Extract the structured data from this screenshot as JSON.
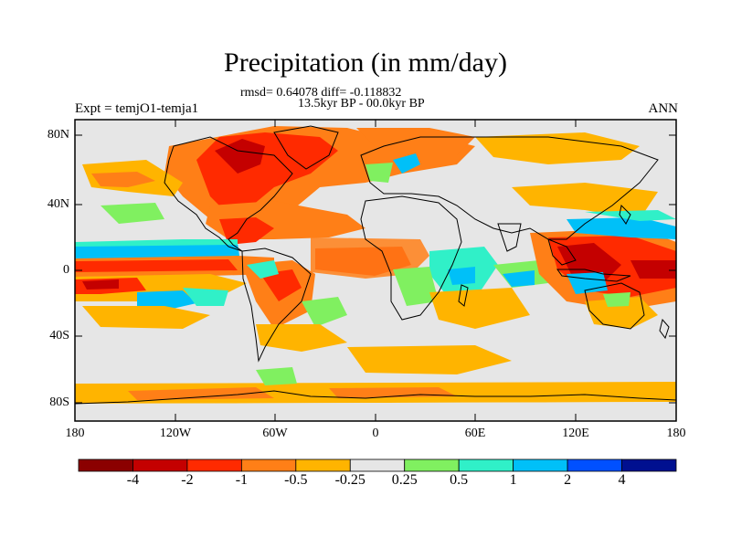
{
  "title": "Precipitation (in mm/day)",
  "stats_line": "rmsd= 0.64078 diff= -0.118832",
  "period_line": "13.5kyr BP - 00.0kyr BP",
  "experiment_label": "Expt = temjO1-temja1",
  "season_label": "ANN",
  "map": {
    "variable": "precipitation difference",
    "units": "mm/day",
    "lat_labels": [
      "80N",
      "40N",
      "0",
      "40S",
      "80S"
    ],
    "lon_labels": [
      "180",
      "120W",
      "60W",
      "0",
      "60E",
      "120E",
      "180"
    ],
    "background_color": "#e6e6e6",
    "coastline_color": "#000000"
  },
  "colorbar": {
    "colors": [
      "#8b0000",
      "#c40000",
      "#ff2a00",
      "#ff7f17",
      "#ffb400",
      "#e6e6e6",
      "#80f060",
      "#30f0c8",
      "#00c0f8",
      "#0050ff",
      "#001090"
    ],
    "tick_labels": [
      "-4",
      "-2",
      "-1",
      "-0.5",
      "-0.25",
      "0.25",
      "0.5",
      "1",
      "2",
      "4"
    ]
  }
}
